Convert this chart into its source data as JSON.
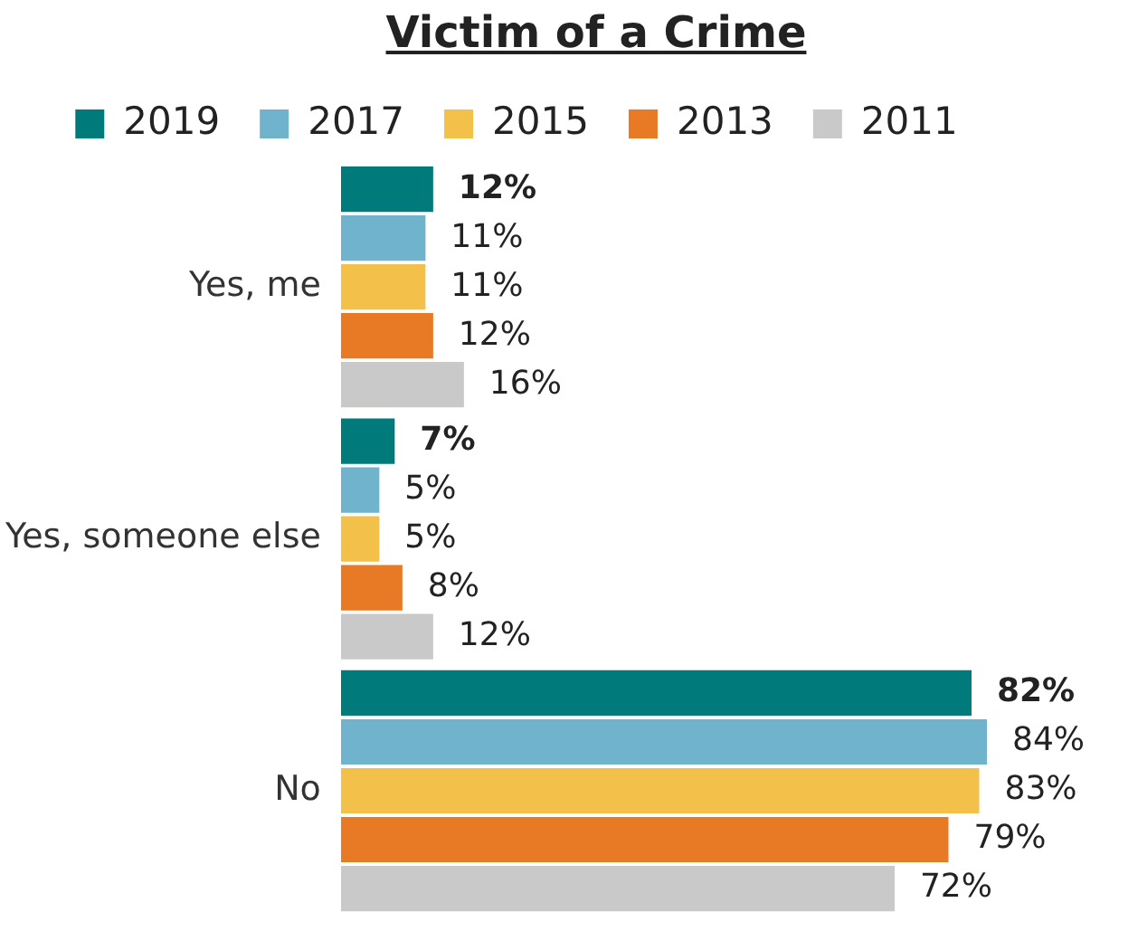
{
  "chart_data": {
    "type": "bar",
    "orientation": "horizontal",
    "title": "Victim of a Crime",
    "categories": [
      "Yes, me",
      "Yes, someone else",
      "No"
    ],
    "legend": "top",
    "series": [
      {
        "name": "2019",
        "color": "#007a7b",
        "values": [
          12,
          7,
          82
        ],
        "value_labels": [
          "12%",
          "7%",
          "82%"
        ]
      },
      {
        "name": "2017",
        "color": "#70b3cc",
        "values": [
          11,
          5,
          84
        ],
        "value_labels": [
          "11%",
          "5%",
          "84%"
        ]
      },
      {
        "name": "2015",
        "color": "#f3c04a",
        "values": [
          11,
          5,
          83
        ],
        "value_labels": [
          "11%",
          "5%",
          "83%"
        ]
      },
      {
        "name": "2013",
        "color": "#e87a26",
        "values": [
          12,
          8,
          79
        ],
        "value_labels": [
          "12%",
          "8%",
          "79%"
        ]
      },
      {
        "name": "2011",
        "color": "#c9c9c9",
        "values": [
          16,
          12,
          72
        ],
        "value_labels": [
          "16%",
          "12%",
          "72%"
        ]
      }
    ]
  }
}
